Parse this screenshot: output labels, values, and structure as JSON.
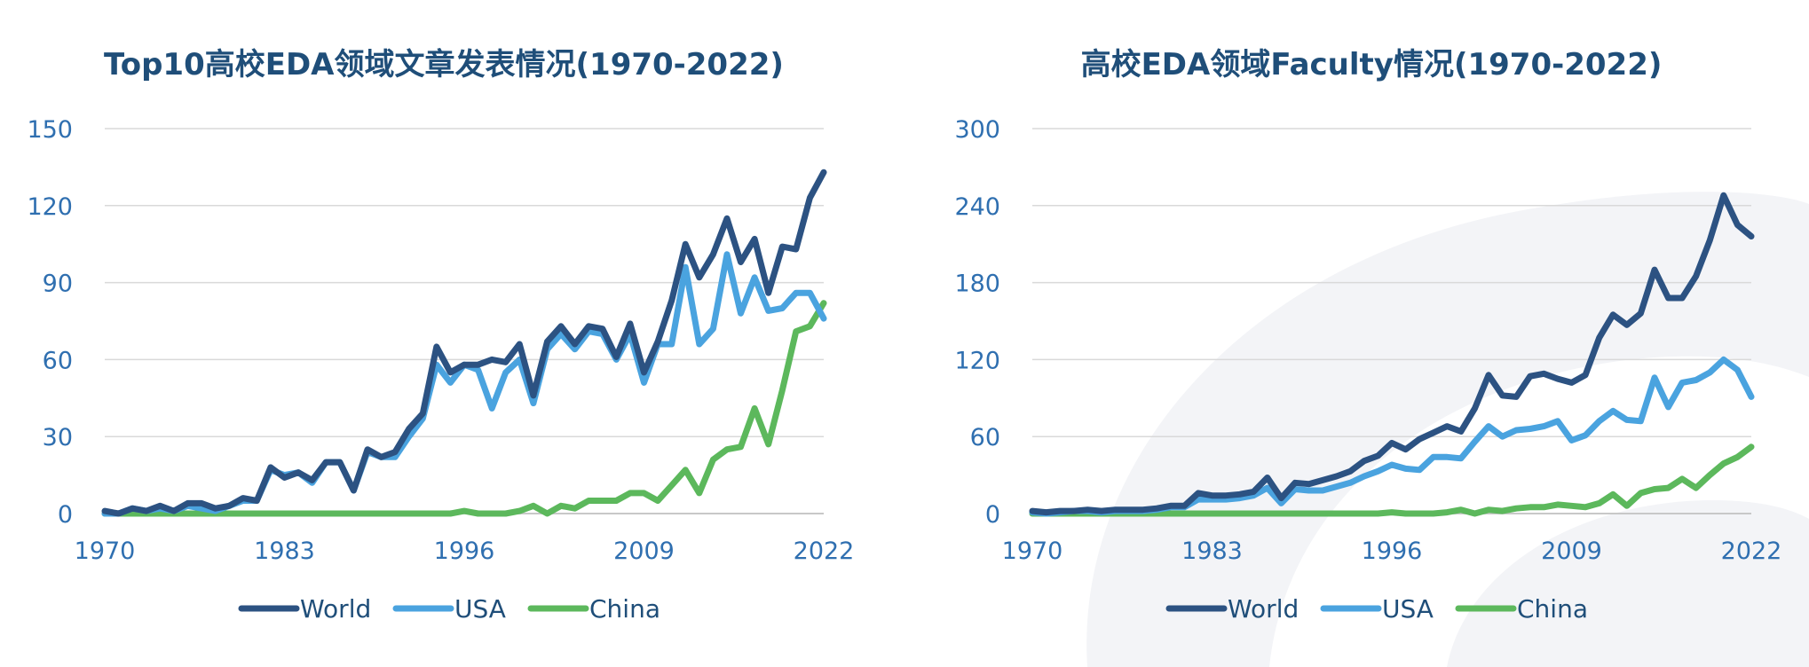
{
  "charts": [
    {
      "title": "Top10高校EDA领域文章发表情况(1970-2022)",
      "chart_data": {
        "type": "line",
        "title": "Top10高校EDA领域文章发表情况(1970-2022)",
        "xlabel": "",
        "ylabel": "",
        "x_ticks": [
          "1970",
          "1983",
          "1996",
          "2009",
          "2022"
        ],
        "y_ticks": [
          "0",
          "30",
          "60",
          "90",
          "120",
          "150"
        ],
        "ylim": [
          0,
          150
        ],
        "xlim": [
          1970,
          2022
        ],
        "grid": true,
        "legend_position": "bottom",
        "x": [
          1970,
          1971,
          1972,
          1973,
          1974,
          1975,
          1976,
          1977,
          1978,
          1979,
          1980,
          1981,
          1982,
          1983,
          1984,
          1985,
          1986,
          1987,
          1988,
          1989,
          1990,
          1991,
          1992,
          1993,
          1994,
          1995,
          1996,
          1997,
          1998,
          1999,
          2000,
          2001,
          2002,
          2003,
          2004,
          2005,
          2006,
          2007,
          2008,
          2009,
          2010,
          2011,
          2012,
          2013,
          2014,
          2015,
          2016,
          2017,
          2018,
          2019,
          2020,
          2021,
          2022
        ],
        "series": [
          {
            "name": "World",
            "color": "#2c5282",
            "values": [
              1,
              0,
              2,
              1,
              3,
              1,
              4,
              4,
              2,
              3,
              6,
              5,
              18,
              14,
              16,
              13,
              20,
              20,
              9,
              25,
              22,
              24,
              33,
              39,
              65,
              55,
              58,
              58,
              60,
              59,
              66,
              46,
              67,
              73,
              66,
              73,
              72,
              61,
              74,
              55,
              67,
              83,
              105,
              92,
              101,
              115,
              98,
              107,
              86,
              104,
              103,
              123,
              133
            ]
          },
          {
            "name": "USA",
            "color": "#4aa3df",
            "values": [
              0,
              0,
              2,
              1,
              2,
              1,
              3,
              2,
              1,
              3,
              5,
              5,
              17,
              15,
              16,
              12,
              20,
              20,
              9,
              24,
              22,
              22,
              30,
              37,
              58,
              51,
              58,
              56,
              41,
              55,
              60,
              43,
              64,
              70,
              64,
              71,
              70,
              60,
              70,
              51,
              66,
              66,
              96,
              66,
              72,
              101,
              78,
              92,
              79,
              80,
              86,
              86,
              76
            ]
          },
          {
            "name": "China",
            "color": "#5cb85c",
            "values": [
              0,
              0,
              0,
              0,
              0,
              0,
              0,
              0,
              0,
              0,
              0,
              0,
              0,
              0,
              0,
              0,
              0,
              0,
              0,
              0,
              0,
              0,
              0,
              0,
              0,
              0,
              1,
              0,
              0,
              0,
              1,
              3,
              0,
              3,
              2,
              5,
              5,
              5,
              8,
              8,
              5,
              11,
              17,
              8,
              21,
              25,
              26,
              41,
              27,
              48,
              71,
              73,
              82
            ]
          }
        ]
      }
    },
    {
      "title": "高校EDA领域Faculty情况(1970-2022)",
      "chart_data": {
        "type": "line",
        "title": "高校EDA领域Faculty情况(1970-2022)",
        "xlabel": "",
        "ylabel": "",
        "x_ticks": [
          "1970",
          "1983",
          "1996",
          "2009",
          "2022"
        ],
        "y_ticks": [
          "0",
          "60",
          "120",
          "180",
          "240",
          "300"
        ],
        "ylim": [
          0,
          300
        ],
        "xlim": [
          1970,
          2022
        ],
        "grid": true,
        "legend_position": "bottom",
        "x": [
          1970,
          1971,
          1972,
          1973,
          1974,
          1975,
          1976,
          1977,
          1978,
          1979,
          1980,
          1981,
          1982,
          1983,
          1984,
          1985,
          1986,
          1987,
          1988,
          1989,
          1990,
          1991,
          1992,
          1993,
          1994,
          1995,
          1996,
          1997,
          1998,
          1999,
          2000,
          2001,
          2002,
          2003,
          2004,
          2005,
          2006,
          2007,
          2008,
          2009,
          2010,
          2011,
          2012,
          2013,
          2014,
          2015,
          2016,
          2017,
          2018,
          2019,
          2020,
          2021,
          2022
        ],
        "series": [
          {
            "name": "World",
            "color": "#2c5282",
            "values": [
              2,
              1,
              2,
              2,
              3,
              2,
              3,
              3,
              3,
              4,
              6,
              6,
              16,
              14,
              14,
              15,
              17,
              28,
              12,
              24,
              23,
              26,
              29,
              33,
              41,
              45,
              55,
              50,
              58,
              63,
              68,
              64,
              82,
              108,
              92,
              91,
              107,
              109,
              105,
              102,
              108,
              137,
              155,
              147,
              156,
              190,
              168,
              168,
              185,
              213,
              248,
              225,
              216
            ]
          },
          {
            "name": "USA",
            "color": "#4aa3df",
            "values": [
              1,
              0,
              1,
              2,
              2,
              1,
              2,
              2,
              2,
              3,
              5,
              5,
              11,
              11,
              11,
              12,
              14,
              20,
              8,
              19,
              18,
              18,
              21,
              24,
              29,
              33,
              38,
              35,
              34,
              44,
              44,
              43,
              56,
              68,
              60,
              65,
              66,
              68,
              72,
              57,
              61,
              72,
              80,
              73,
              72,
              106,
              83,
              102,
              104,
              110,
              120,
              112,
              91
            ]
          },
          {
            "name": "China",
            "color": "#5cb85c",
            "values": [
              0,
              0,
              0,
              0,
              0,
              0,
              0,
              0,
              0,
              0,
              0,
              0,
              0,
              0,
              0,
              0,
              0,
              0,
              0,
              0,
              0,
              0,
              0,
              0,
              0,
              0,
              1,
              0,
              0,
              0,
              1,
              3,
              0,
              3,
              2,
              4,
              5,
              5,
              7,
              6,
              5,
              8,
              15,
              6,
              16,
              19,
              20,
              27,
              20,
              30,
              39,
              44,
              52
            ]
          }
        ]
      }
    }
  ]
}
